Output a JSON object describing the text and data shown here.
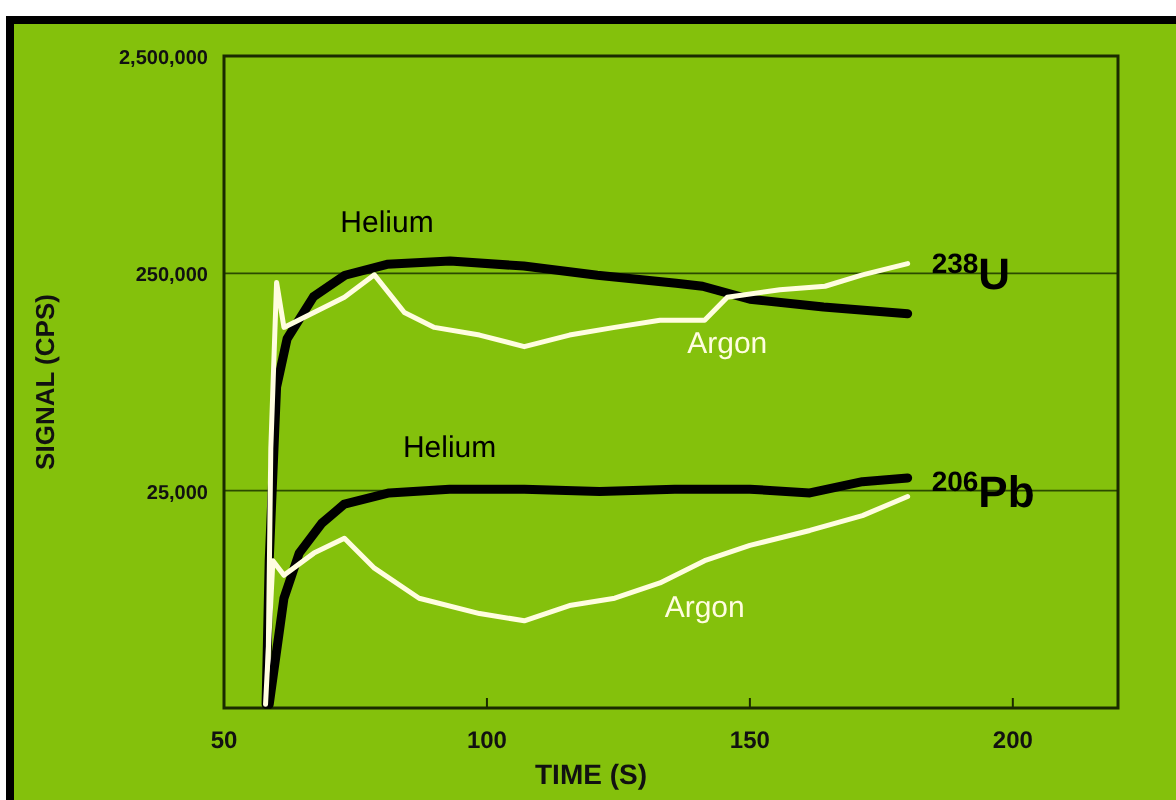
{
  "chart_data": {
    "type": "line",
    "xlabel": "TIME (S)",
    "ylabel": "SIGNAL (CPS)",
    "xlim": [
      50,
      220
    ],
    "xticks": [
      50,
      100,
      150,
      200
    ],
    "ylim": [
      2500,
      2500000
    ],
    "log": "y",
    "yticks": [
      {
        "value": 2500000,
        "label": "2,500,000"
      },
      {
        "value": 250000,
        "label": "250,000"
      },
      {
        "value": 25000,
        "label": "25,000"
      }
    ],
    "grid": "y",
    "series": [
      {
        "name": "Helium",
        "color": "#000000",
        "x": [
          58,
          58.6,
          60,
          62,
          67,
          73,
          81,
          93,
          107,
          121,
          136,
          141,
          150,
          164,
          180
        ],
        "values": [
          2600,
          12000,
          75000,
          125000,
          195000,
          245000,
          275000,
          285000,
          270000,
          245000,
          225000,
          218000,
          190000,
          175000,
          163000
        ]
      },
      {
        "name": "Argon",
        "color": "#fffde0",
        "x": [
          58.3,
          58.9,
          60,
          61.4,
          67.1,
          72.9,
          78.6,
          84.3,
          90,
          98.6,
          107.1,
          115.7,
          124.3,
          132.9,
          141.4,
          145.7,
          155.7,
          164.3,
          171.4,
          180
        ],
        "values": [
          2600,
          39000,
          227000,
          141000,
          165000,
          194000,
          246000,
          165000,
          141000,
          130000,
          115000,
          130000,
          141000,
          152000,
          152000,
          194000,
          210000,
          218000,
          246000,
          277000
        ]
      },
      {
        "name": "Helium",
        "color": "#000000",
        "x": [
          58.6,
          61.4,
          64.3,
          68.6,
          72.9,
          81.4,
          92.9,
          107.1,
          121.4,
          135.7,
          150,
          161.4,
          171.4,
          180
        ],
        "values": [
          2600,
          8000,
          12900,
          17700,
          21700,
          24400,
          25400,
          25400,
          24800,
          25400,
          25400,
          24400,
          27500,
          28600
        ]
      },
      {
        "name": "Argon",
        "color": "#fffde0",
        "x": [
          57.9,
          59.3,
          61.4,
          67.1,
          72.9,
          78.6,
          87.1,
          98.6,
          107.1,
          115.7,
          124.3,
          132.9,
          141.4,
          150,
          161.4,
          171.4,
          180
        ],
        "values": [
          2600,
          11900,
          10200,
          12900,
          15100,
          11000,
          8000,
          6800,
          6300,
          7400,
          8000,
          9400,
          11900,
          14000,
          16400,
          19200,
          23500
        ]
      }
    ],
    "annotations": [
      {
        "text": "$^{238}$U",
        "x": 180,
        "y": 250000
      },
      {
        "text": "$^{206}$Pb",
        "x": 180,
        "y": 25000
      }
    ]
  }
}
